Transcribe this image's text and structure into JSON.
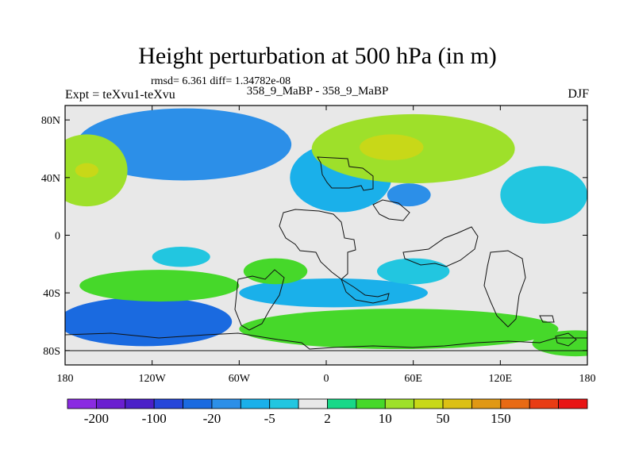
{
  "chart_data": {
    "type": "heatmap",
    "title": "Height perturbation at 500 hPa (in m)",
    "stats_line": "rmsd= 6.361 diff= 1.34782e-08",
    "experiment_label": "Expt = teXvu1-teXvu",
    "case_label": "358_9_MaBP - 358_9_MaBP",
    "season": "DJF",
    "xlim": [
      -180,
      180
    ],
    "ylim": [
      -90,
      90
    ],
    "x_ticks": [
      {
        "value": -180,
        "label": "180"
      },
      {
        "value": -120,
        "label": "120W"
      },
      {
        "value": -60,
        "label": "60W"
      },
      {
        "value": 0,
        "label": "0"
      },
      {
        "value": 60,
        "label": "60E"
      },
      {
        "value": 120,
        "label": "120E"
      },
      {
        "value": 180,
        "label": "180"
      }
    ],
    "y_ticks": [
      {
        "value": 80,
        "label": "80N"
      },
      {
        "value": 40,
        "label": "40N"
      },
      {
        "value": 0,
        "label": "0"
      },
      {
        "value": -40,
        "label": "40S"
      },
      {
        "value": -80,
        "label": "80S"
      }
    ],
    "colorbar": {
      "colors": [
        "#8a2be2",
        "#6a1fd0",
        "#4b20c8",
        "#2646d9",
        "#1a6ae0",
        "#2c8fe8",
        "#1ab0ea",
        "#22c6e0",
        "#e8e8e8",
        "#18d888",
        "#46d82a",
        "#9ee02a",
        "#c8d818",
        "#dcc014",
        "#e09814",
        "#e86a14",
        "#e83c14",
        "#e81414"
      ],
      "levels": [
        -200,
        -150,
        -100,
        -50,
        -20,
        -10,
        -5,
        -2,
        2,
        5,
        10,
        20,
        50,
        100,
        150,
        200
      ],
      "labels": [
        {
          "level_index": 0,
          "text": "-200"
        },
        {
          "level_index": 2,
          "text": "-100"
        },
        {
          "level_index": 4,
          "text": "-20"
        },
        {
          "level_index": 6,
          "text": "-5"
        },
        {
          "level_index": 8,
          "text": "2"
        },
        {
          "level_index": 10,
          "text": "10"
        },
        {
          "level_index": 12,
          "text": "50"
        },
        {
          "level_index": 14,
          "text": "150"
        }
      ]
    },
    "anomaly_centers": [
      {
        "name": "north-pacific-low",
        "lon": -98,
        "lat": 63,
        "rlon": 50,
        "rlat": 17,
        "value": -45
      },
      {
        "name": "north-pacific-low-halo",
        "lon": -98,
        "lat": 63,
        "rlon": 74,
        "rlat": 25,
        "value": -12
      },
      {
        "name": "north-atlantic-low",
        "lon": 8,
        "lat": 42,
        "rlon": 22,
        "rlat": 18,
        "value": -22
      },
      {
        "name": "north-atlantic-low-halo",
        "lon": 10,
        "lat": 40,
        "rlon": 35,
        "rlat": 24,
        "value": -7
      },
      {
        "name": "central-asia-low",
        "lon": 57,
        "lat": 28,
        "rlon": 15,
        "rlat": 8,
        "value": -12
      },
      {
        "name": "west-pacific-low",
        "lon": 150,
        "lat": 28,
        "rlon": 30,
        "rlat": 20,
        "value": -5
      },
      {
        "name": "eurasian-high",
        "lon": 60,
        "lat": 60,
        "rlon": 70,
        "rlat": 24,
        "value": 14
      },
      {
        "name": "eurasian-high-core",
        "lon": 45,
        "lat": 61,
        "rlon": 22,
        "rlat": 9,
        "value": 40
      },
      {
        "name": "north-pacific-high",
        "lon": -165,
        "lat": 45,
        "rlon": 28,
        "rlat": 25,
        "value": 13
      },
      {
        "name": "north-pacific-high-core",
        "lon": -165,
        "lat": 45,
        "rlon": 8,
        "rlat": 5,
        "value": 45
      },
      {
        "name": "south-ocean-low-1",
        "lon": -125,
        "lat": -60,
        "rlon": 60,
        "rlat": 17,
        "value": -22
      },
      {
        "name": "south-ocean-low-2",
        "lon": 5,
        "lat": -40,
        "rlon": 65,
        "rlat": 10,
        "value": -8
      },
      {
        "name": "south-ocean-low-3",
        "lon": 60,
        "lat": -25,
        "rlon": 25,
        "rlat": 9,
        "value": -4
      },
      {
        "name": "south-ocean-low-4",
        "lon": -100,
        "lat": -15,
        "rlon": 20,
        "rlat": 7,
        "value": -4
      },
      {
        "name": "south-ocean-high-1",
        "lon": -115,
        "lat": -35,
        "rlon": 55,
        "rlat": 11,
        "value": 8
      },
      {
        "name": "south-ocean-high-2",
        "lon": 50,
        "lat": -65,
        "rlon": 110,
        "rlat": 14,
        "value": 7
      },
      {
        "name": "south-ocean-high-3",
        "lon": -35,
        "lat": -25,
        "rlon": 22,
        "rlat": 9,
        "value": 5
      },
      {
        "name": "south-ocean-high-4",
        "lon": 172,
        "lat": -75,
        "rlon": 30,
        "rlat": 9,
        "value": 8
      }
    ]
  }
}
